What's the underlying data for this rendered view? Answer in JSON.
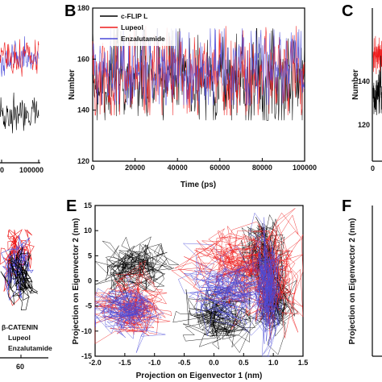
{
  "panels": {
    "A": {
      "x_tick_last": "100000",
      "x_tick_first": "0"
    },
    "B": {
      "letter": "B"
    },
    "C": {
      "letter": "C"
    },
    "D": {
      "x_tick": "60",
      "legend": [
        "β-CATENIN",
        "Lupeol",
        "Enzalutamide"
      ]
    },
    "E": {
      "letter": "E"
    },
    "F": {
      "letter": "F",
      "ylabel": "Projection on Eigenvector 2 (nm)"
    }
  },
  "chart_data": [
    {
      "panel": "B",
      "type": "line",
      "title": "",
      "xlabel": "Time (ps)",
      "ylabel": "Number",
      "xlim": [
        0,
        100000
      ],
      "ylim": [
        120,
        180
      ],
      "x_ticks": [
        "0",
        "20000",
        "40000",
        "60000",
        "80000",
        "100000"
      ],
      "y_ticks": [
        "120",
        "140",
        "160",
        "180"
      ],
      "legend_position": "top-left",
      "series": [
        {
          "name": "c-FLIP L",
          "color": "#000000",
          "mean": 152,
          "low": 136,
          "high": 172
        },
        {
          "name": "Lupeol",
          "color": "#ee1c1c",
          "mean": 154,
          "low": 138,
          "high": 173
        },
        {
          "name": "Enzalutamide",
          "color": "#4a4ad8",
          "mean": 156,
          "low": 142,
          "high": 172
        }
      ]
    },
    {
      "panel": "E",
      "type": "scatter",
      "title": "",
      "xlabel": "Projection on Eigenvector 1 (nm)",
      "ylabel": "Projection on Eigenvector 2 (nm)",
      "xlim": [
        -2.0,
        1.5
      ],
      "ylim": [
        -15,
        15
      ],
      "x_ticks": [
        "-2.0",
        "-1.5",
        "-1.0",
        "-0.5",
        "0.0",
        "0.5",
        "1.0",
        "1.5"
      ],
      "y_ticks": [
        "-15",
        "-10",
        "-5",
        "0",
        "5",
        "10",
        "15"
      ],
      "series": [
        {
          "name": "c-FLIP L",
          "color": "#000000",
          "clusters": [
            {
              "cx": -1.35,
              "cy": 2.5,
              "sx": 0.28,
              "sy": 2.5
            },
            {
              "cx": 0.1,
              "cy": -7,
              "sx": 0.25,
              "sy": 2.8
            },
            {
              "cx": 0.85,
              "cy": 5,
              "sx": 0.2,
              "sy": 3.5
            },
            {
              "cx": 1.05,
              "cy": -4,
              "sx": 0.15,
              "sy": 3
            }
          ]
        },
        {
          "name": "Lupeol",
          "color": "#ee1c1c",
          "clusters": [
            {
              "cx": -1.4,
              "cy": -5.5,
              "sx": 0.3,
              "sy": 2.8
            },
            {
              "cx": 0.25,
              "cy": 3,
              "sx": 0.35,
              "sy": 3.5
            },
            {
              "cx": 0.9,
              "cy": 0,
              "sx": 0.25,
              "sy": 5.5
            }
          ]
        },
        {
          "name": "Enzalutamide",
          "color": "#4a4ad8",
          "clusters": [
            {
              "cx": -1.45,
              "cy": -6.5,
              "sx": 0.25,
              "sy": 2.2
            },
            {
              "cx": 0.2,
              "cy": -1.5,
              "sx": 0.3,
              "sy": 3
            },
            {
              "cx": 0.9,
              "cy": -1,
              "sx": 0.12,
              "sy": 5.5
            }
          ]
        }
      ]
    }
  ]
}
